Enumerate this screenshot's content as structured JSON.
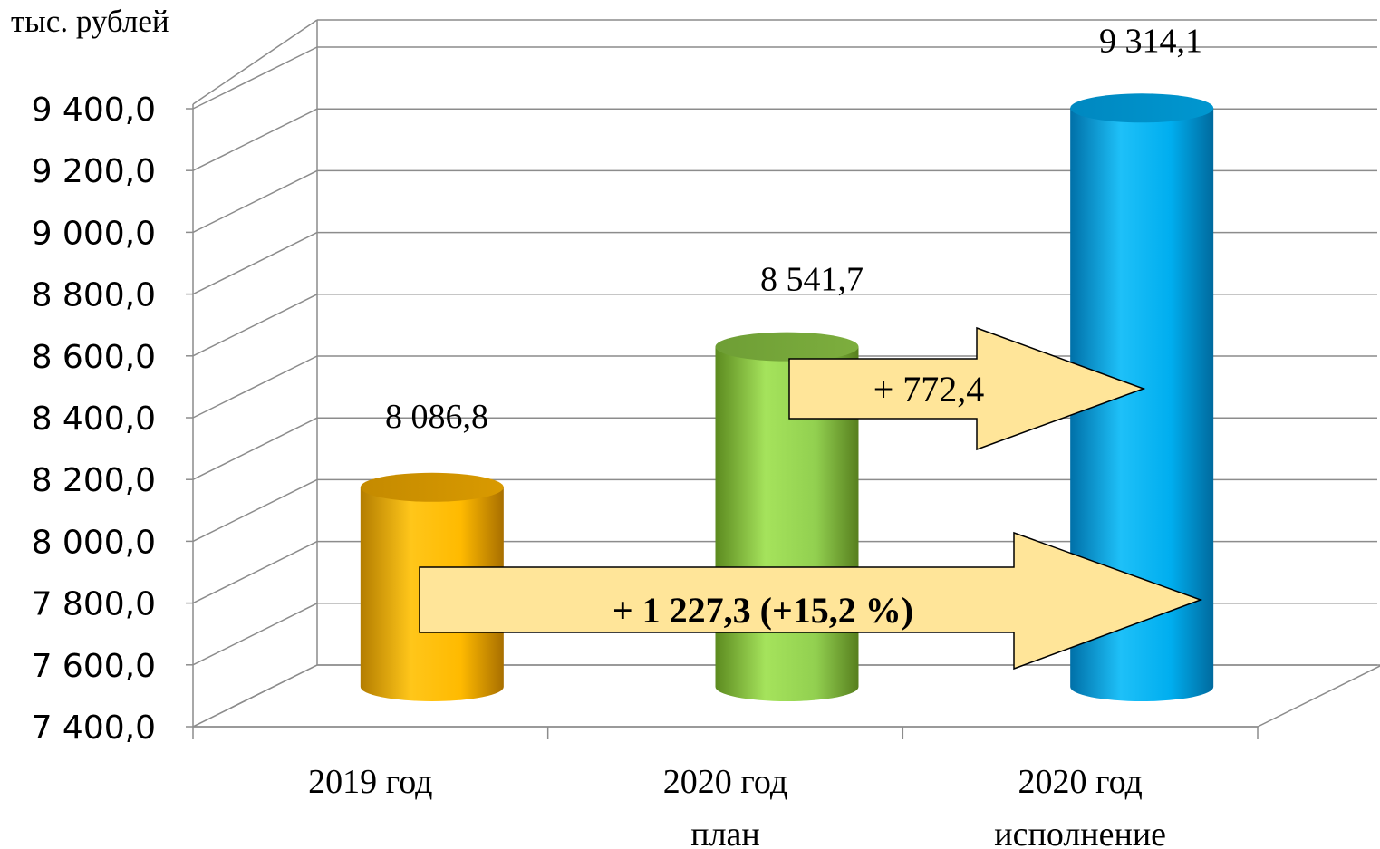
{
  "chart_data": {
    "type": "bar",
    "unit_label": "тыс. рублей",
    "categories": [
      [
        "2019 год"
      ],
      [
        "2020 год",
        "план"
      ],
      [
        "2020 год",
        "исполнение"
      ]
    ],
    "values": [
      8086.8,
      8541.7,
      9314.1
    ],
    "value_labels": [
      "8 086,8",
      "8 541,7",
      "9 314,1"
    ],
    "ylim": [
      7400,
      9400
    ],
    "yticks": [
      7400,
      7600,
      7800,
      8000,
      8200,
      8400,
      8600,
      8800,
      9000,
      9200,
      9400
    ],
    "ytick_labels": [
      "7 400,0",
      "7 600,0",
      "7 800,0",
      "8 000,0",
      "8 200,0",
      "8 400,0",
      "8 600,0",
      "8 800,0",
      "9 000,0",
      "9 200,0",
      "9 400,0"
    ],
    "grid": true,
    "colors": [
      "#F5B800",
      "#8CC63F",
      "#0AA4E0"
    ],
    "annotations": [
      {
        "text": "+ 772,4",
        "from": 1,
        "to": 2,
        "bold": false
      },
      {
        "text": "+ 1 227,3 (+15,2 %)",
        "from": 0,
        "to": 2,
        "bold": true
      }
    ],
    "arrow_fill": "#FFE599"
  }
}
